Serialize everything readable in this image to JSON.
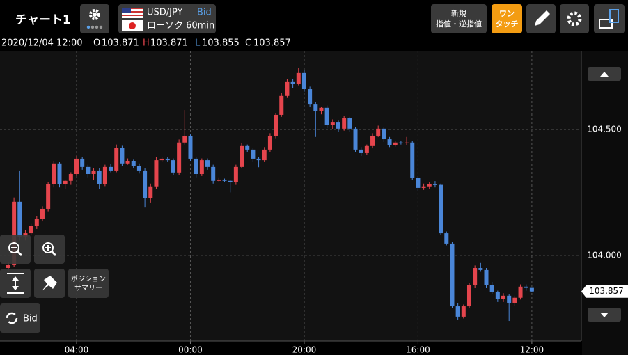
{
  "header": {
    "title": "チャート1",
    "pair": "USD/JPY",
    "side": "Bid",
    "chart_kind": "ローソク 60min",
    "order_line1": "新規",
    "order_line2": "指値・逆指値",
    "onetouch_line1": "ワン",
    "onetouch_line2": "タッチ"
  },
  "info": {
    "datetime": "2020/12/04 12:00",
    "ohlc_labels": [
      "O",
      "H",
      "L",
      "C"
    ]
  },
  "tools": {
    "summary_line1": "ポジション",
    "summary_line2": "サマリー",
    "side_toggle": "Bid"
  },
  "chart_data": {
    "type": "candlestick",
    "up_color": "#e5454d",
    "down_color": "#4a86d8",
    "grid": true,
    "xlim": [
      -1.46,
      100.7
    ],
    "ylim": [
      103.66,
      104.812
    ],
    "xticks": [
      {
        "value": 12,
        "label": "04:00"
      },
      {
        "value": 32,
        "label": "00:00"
      },
      {
        "value": 52,
        "label": "20:00"
      },
      {
        "value": 72,
        "label": "16:00"
      },
      {
        "value": 92,
        "label": "12:00"
      }
    ],
    "yticks": [
      {
        "value": 104.0,
        "label": "104.000"
      },
      {
        "value": 104.5,
        "label": "104.500"
      }
    ],
    "candles": [
      [
        103.95,
        103.975,
        103.94,
        103.964
      ],
      [
        103.964,
        104.23,
        103.955,
        104.213
      ],
      [
        104.213,
        104.337,
        104.06,
        104.075
      ],
      [
        104.075,
        104.1,
        104.06,
        104.088
      ],
      [
        104.088,
        104.125,
        104.08,
        104.116
      ],
      [
        104.116,
        104.155,
        104.105,
        104.144
      ],
      [
        104.144,
        104.195,
        104.135,
        104.185
      ],
      [
        104.185,
        104.29,
        104.175,
        104.282
      ],
      [
        104.282,
        104.375,
        104.27,
        104.365
      ],
      [
        104.365,
        104.37,
        104.27,
        104.282
      ],
      [
        104.282,
        104.3,
        104.265,
        104.296
      ],
      [
        104.296,
        104.33,
        104.28,
        104.323
      ],
      [
        104.323,
        104.395,
        104.315,
        104.384
      ],
      [
        104.384,
        104.392,
        104.34,
        104.351
      ],
      [
        104.351,
        104.36,
        104.31,
        104.323
      ],
      [
        104.323,
        104.345,
        104.3,
        104.337
      ],
      [
        104.337,
        104.345,
        104.265,
        104.282
      ],
      [
        104.282,
        104.36,
        104.275,
        104.351
      ],
      [
        104.351,
        104.362,
        104.33,
        104.337
      ],
      [
        104.337,
        104.44,
        104.33,
        104.428
      ],
      [
        104.428,
        104.435,
        104.355,
        104.365
      ],
      [
        104.365,
        104.385,
        104.36,
        104.373
      ],
      [
        104.373,
        104.38,
        104.345,
        104.356
      ],
      [
        104.356,
        104.365,
        104.325,
        104.337
      ],
      [
        104.337,
        104.345,
        104.19,
        104.227
      ],
      [
        104.227,
        104.285,
        104.21,
        104.274
      ],
      [
        104.274,
        104.39,
        104.265,
        104.378
      ],
      [
        104.378,
        104.392,
        104.37,
        104.384
      ],
      [
        104.384,
        104.39,
        104.37,
        104.378
      ],
      [
        104.378,
        104.385,
        104.32,
        104.329
      ],
      [
        104.329,
        104.46,
        104.32,
        104.448
      ],
      [
        104.448,
        104.577,
        104.44,
        104.475
      ],
      [
        104.475,
        104.48,
        104.375,
        104.384
      ],
      [
        104.384,
        104.39,
        104.31,
        104.323
      ],
      [
        104.323,
        104.385,
        104.315,
        104.378
      ],
      [
        104.378,
        104.385,
        104.34,
        104.351
      ],
      [
        104.351,
        104.36,
        104.285,
        104.296
      ],
      [
        104.296,
        104.31,
        104.29,
        104.301
      ],
      [
        104.301,
        104.305,
        104.29,
        104.296
      ],
      [
        104.296,
        104.3,
        104.25,
        104.29
      ],
      [
        104.29,
        104.36,
        104.28,
        104.351
      ],
      [
        104.351,
        104.445,
        104.345,
        104.434
      ],
      [
        104.434,
        104.44,
        104.41,
        104.42
      ],
      [
        104.42,
        104.425,
        104.37,
        104.384
      ],
      [
        104.384,
        104.39,
        104.35,
        104.378
      ],
      [
        104.378,
        104.43,
        104.37,
        104.42
      ],
      [
        104.42,
        104.485,
        104.41,
        104.475
      ],
      [
        104.475,
        104.565,
        104.465,
        104.558
      ],
      [
        104.558,
        104.645,
        104.55,
        104.633
      ],
      [
        104.633,
        104.7,
        104.625,
        104.688
      ],
      [
        104.688,
        104.7,
        104.665,
        104.682
      ],
      [
        104.682,
        104.743,
        104.675,
        104.724
      ],
      [
        104.724,
        104.735,
        104.65,
        104.66
      ],
      [
        104.66,
        104.67,
        104.59,
        104.599
      ],
      [
        104.599,
        104.61,
        104.47,
        104.572
      ],
      [
        104.572,
        104.59,
        104.56,
        104.586
      ],
      [
        104.586,
        104.595,
        104.505,
        104.517
      ],
      [
        104.517,
        104.54,
        104.5,
        104.53
      ],
      [
        104.53,
        104.535,
        104.49,
        104.503
      ],
      [
        104.503,
        104.555,
        104.495,
        104.544
      ],
      [
        104.544,
        104.55,
        104.49,
        104.503
      ],
      [
        104.503,
        104.51,
        104.41,
        104.42
      ],
      [
        104.42,
        104.43,
        104.395,
        104.406
      ],
      [
        104.406,
        104.44,
        104.4,
        104.434
      ],
      [
        104.434,
        104.485,
        104.425,
        104.475
      ],
      [
        104.475,
        104.515,
        104.47,
        104.503
      ],
      [
        104.503,
        104.51,
        104.45,
        104.461
      ],
      [
        104.461,
        104.47,
        104.43,
        104.439
      ],
      [
        104.439,
        104.455,
        104.432,
        104.448
      ],
      [
        104.448,
        104.455,
        104.44,
        104.445
      ],
      [
        104.445,
        104.47,
        104.438,
        104.448
      ],
      [
        104.448,
        104.455,
        104.3,
        104.309
      ],
      [
        104.309,
        104.315,
        104.255,
        104.268
      ],
      [
        104.268,
        104.285,
        104.26,
        104.274
      ],
      [
        104.274,
        104.29,
        104.265,
        104.282
      ],
      [
        104.282,
        104.295,
        104.27,
        104.28
      ],
      [
        104.28,
        104.285,
        104.08,
        104.088
      ],
      [
        104.088,
        104.095,
        104.04,
        104.047
      ],
      [
        104.047,
        104.055,
        103.79,
        103.798
      ],
      [
        103.798,
        103.81,
        103.743,
        103.757
      ],
      [
        103.757,
        103.805,
        103.75,
        103.798
      ],
      [
        103.798,
        103.89,
        103.79,
        103.881
      ],
      [
        103.881,
        103.96,
        103.87,
        103.95
      ],
      [
        103.95,
        103.97,
        103.935,
        103.942
      ],
      [
        103.942,
        103.95,
        103.87,
        103.881
      ],
      [
        103.881,
        103.895,
        103.845,
        103.854
      ],
      [
        103.854,
        103.86,
        103.815,
        103.826
      ],
      [
        103.826,
        103.85,
        103.815,
        103.84
      ],
      [
        103.84,
        103.845,
        103.74,
        103.812
      ],
      [
        103.812,
        103.84,
        103.8,
        103.832
      ],
      [
        103.832,
        103.885,
        103.825,
        103.876
      ],
      [
        103.876,
        103.885,
        103.86,
        103.871
      ],
      [
        103.871,
        103.871,
        103.855,
        103.857
      ]
    ]
  }
}
